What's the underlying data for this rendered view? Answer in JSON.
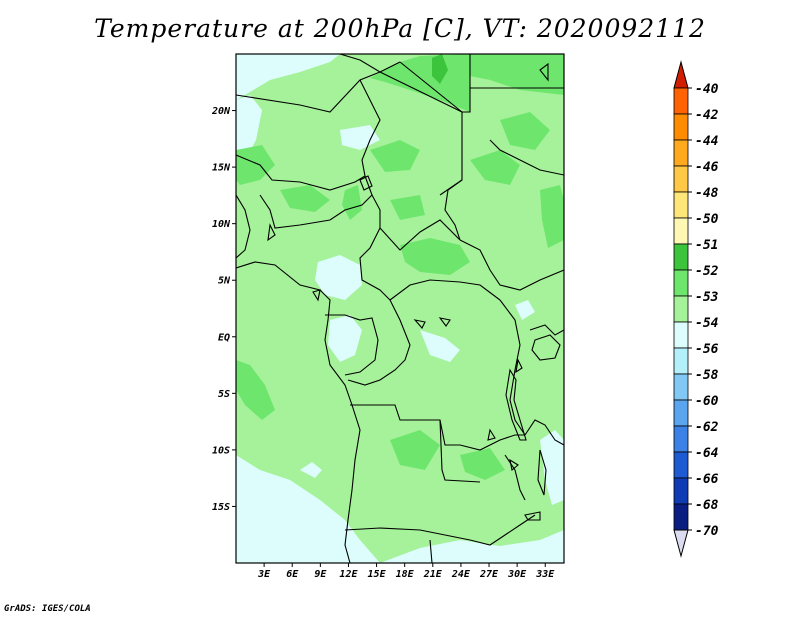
{
  "title": "Temperature at 200hPa [C], VT: 2020092112",
  "credit": "GrADS: IGES/COLA",
  "map": {
    "lon_range": [
      0,
      35
    ],
    "lat_range": [
      -20,
      25
    ],
    "lat_ticks": [
      {
        "value": 20,
        "label": "20N"
      },
      {
        "value": 15,
        "label": "15N"
      },
      {
        "value": 10,
        "label": "10N"
      },
      {
        "value": 5,
        "label": "5N"
      },
      {
        "value": 0,
        "label": "EQ"
      },
      {
        "value": -5,
        "label": "5S"
      },
      {
        "value": -10,
        "label": "10S"
      },
      {
        "value": -15,
        "label": "15S"
      }
    ],
    "lon_ticks": [
      {
        "value": 3,
        "label": "3E"
      },
      {
        "value": 6,
        "label": "6E"
      },
      {
        "value": 9,
        "label": "9E"
      },
      {
        "value": 12,
        "label": "12E"
      },
      {
        "value": 15,
        "label": "15E"
      },
      {
        "value": 18,
        "label": "18E"
      },
      {
        "value": 21,
        "label": "21E"
      },
      {
        "value": 24,
        "label": "24E"
      },
      {
        "value": 27,
        "label": "27E"
      },
      {
        "value": 30,
        "label": "30E"
      },
      {
        "value": 33,
        "label": "33E"
      }
    ],
    "colors": {
      "c_53": "#a6f29a",
      "c_52": "#6ee66e",
      "c_51": "#3cc43c",
      "c_54": "#ddfdfd",
      "c_56": "#b4f0fa",
      "border": "#000000"
    }
  },
  "colorbar": {
    "top_color": "#d21e00",
    "bottom_color": "#dcdcf0",
    "levels": [
      {
        "label": "-40",
        "color": "#ff3a00"
      },
      {
        "label": "-42",
        "color": "#ff6200"
      },
      {
        "label": "-44",
        "color": "#ff8c00"
      },
      {
        "label": "-46",
        "color": "#ffaa1e"
      },
      {
        "label": "-48",
        "color": "#ffc846"
      },
      {
        "label": "-50",
        "color": "#ffe678"
      },
      {
        "label": "-51",
        "color": "#fff8b4"
      },
      {
        "label": "-52",
        "color": "#3cc43c"
      },
      {
        "label": "-53",
        "color": "#6ee66e"
      },
      {
        "label": "-54",
        "color": "#a6f29a"
      },
      {
        "label": "-56",
        "color": "#ddfdfd"
      },
      {
        "label": "-58",
        "color": "#b4f0fa"
      },
      {
        "label": "-60",
        "color": "#82c8f5"
      },
      {
        "label": "-62",
        "color": "#5aa5ee"
      },
      {
        "label": "-64",
        "color": "#3c82e6"
      },
      {
        "label": "-66",
        "color": "#1e5ad2"
      },
      {
        "label": "-68",
        "color": "#0f3cb4"
      },
      {
        "label": "-70",
        "color": "#0a1e82"
      }
    ]
  }
}
